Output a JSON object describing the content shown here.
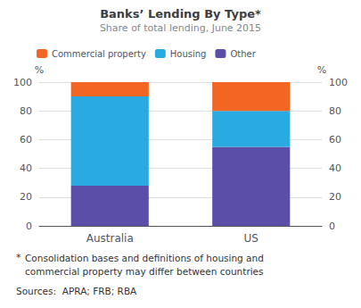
{
  "chart_data": {
    "type": "bar",
    "stacked": true,
    "title": "Banks’ Lending By Type*",
    "subtitle": "Share of total lending, June 2015",
    "categories": [
      "Australia",
      "US"
    ],
    "series": [
      {
        "name": "Other",
        "color": "#5B4EA8",
        "values": [
          28,
          55
        ]
      },
      {
        "name": "Housing",
        "color": "#29ABE2",
        "values": [
          62,
          25
        ]
      },
      {
        "name": "Commercial property",
        "color": "#F26522",
        "values": [
          10,
          20
        ]
      }
    ],
    "ylabel": "%",
    "y2label": "%",
    "ylim": [
      0,
      100
    ],
    "yticks": [
      0,
      20,
      40,
      60,
      80,
      100
    ],
    "y2lim": [
      0,
      100
    ],
    "y2ticks": [
      0,
      20,
      40,
      60,
      80,
      100
    ],
    "grid": true,
    "legend": "upper left",
    "annotations": [
      "*",
      "Consolidation bases and definitions of housing and",
      "commercial property may differ between countries",
      "Sources:  APRA; FRB; RBA"
    ]
  }
}
